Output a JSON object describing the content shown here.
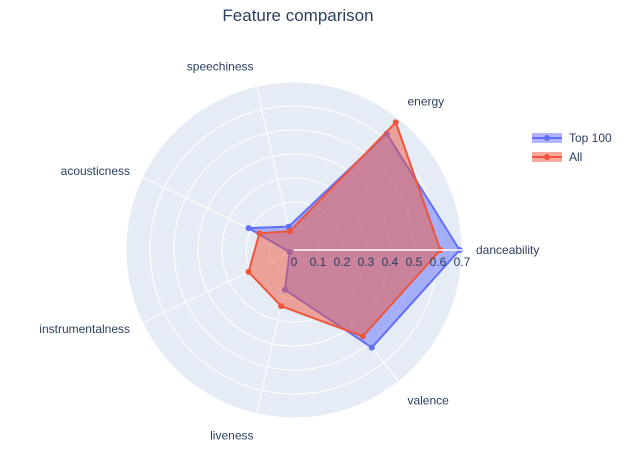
{
  "chart_data": {
    "type": "radar",
    "title": "Feature comparison",
    "axes": [
      "danceability",
      "energy",
      "speechiness",
      "acousticness",
      "instrumentalness",
      "liveness",
      "valence"
    ],
    "radial_ticks": [
      "0",
      "0.1",
      "0.2",
      "0.3",
      "0.4",
      "0.5",
      "0.6",
      "0.7"
    ],
    "radial_range": [
      0,
      0.7
    ],
    "grid": true,
    "legend_position": "top-right",
    "series": [
      {
        "name": "Top 100",
        "color": "#636efa",
        "values": [
          0.69,
          0.62,
          0.1,
          0.21,
          0.02,
          0.17,
          0.52
        ]
      },
      {
        "name": "All",
        "color": "#ef553b",
        "values": [
          0.61,
          0.68,
          0.08,
          0.16,
          0.21,
          0.24,
          0.46
        ]
      }
    ]
  }
}
